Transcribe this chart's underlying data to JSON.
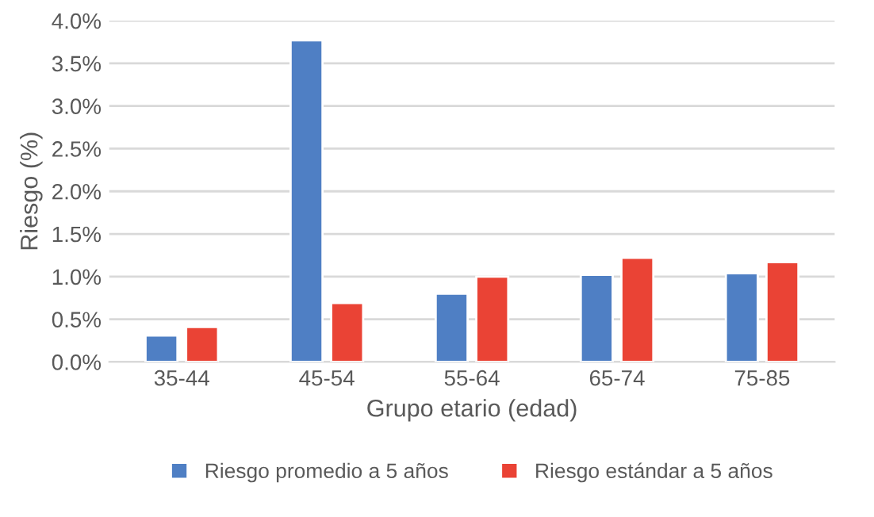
{
  "chart_data": {
    "type": "bar",
    "xlabel": "Grupo etario (edad)",
    "ylabel": "Riesgo (%)",
    "categories": [
      "35-44",
      "45-54",
      "55-64",
      "65-74",
      "75-85"
    ],
    "series": [
      {
        "name": "Riesgo promedio a 5 años",
        "color": "#4f7fc4",
        "values": [
          0.31,
          3.77,
          0.8,
          1.02,
          1.04
        ]
      },
      {
        "name": "Riesgo estándar a 5 años",
        "color": "#ea4335",
        "values": [
          0.41,
          0.69,
          1.0,
          1.22,
          1.17
        ]
      }
    ],
    "ylim": [
      0,
      4.0
    ],
    "yticks": [
      {
        "value": 0,
        "label": "0.0%"
      },
      {
        "value": 0.5,
        "label": "0.5%"
      },
      {
        "value": 1.0,
        "label": "1.0%"
      },
      {
        "value": 1.5,
        "label": "1.5%"
      },
      {
        "value": 2.0,
        "label": "2.0%"
      },
      {
        "value": 2.5,
        "label": "2.5%"
      },
      {
        "value": 3.0,
        "label": "3.0%"
      },
      {
        "value": 3.5,
        "label": "3.5%"
      },
      {
        "value": 4.0,
        "label": "4.0%"
      }
    ],
    "grid": "y",
    "legend": "bottom"
  }
}
